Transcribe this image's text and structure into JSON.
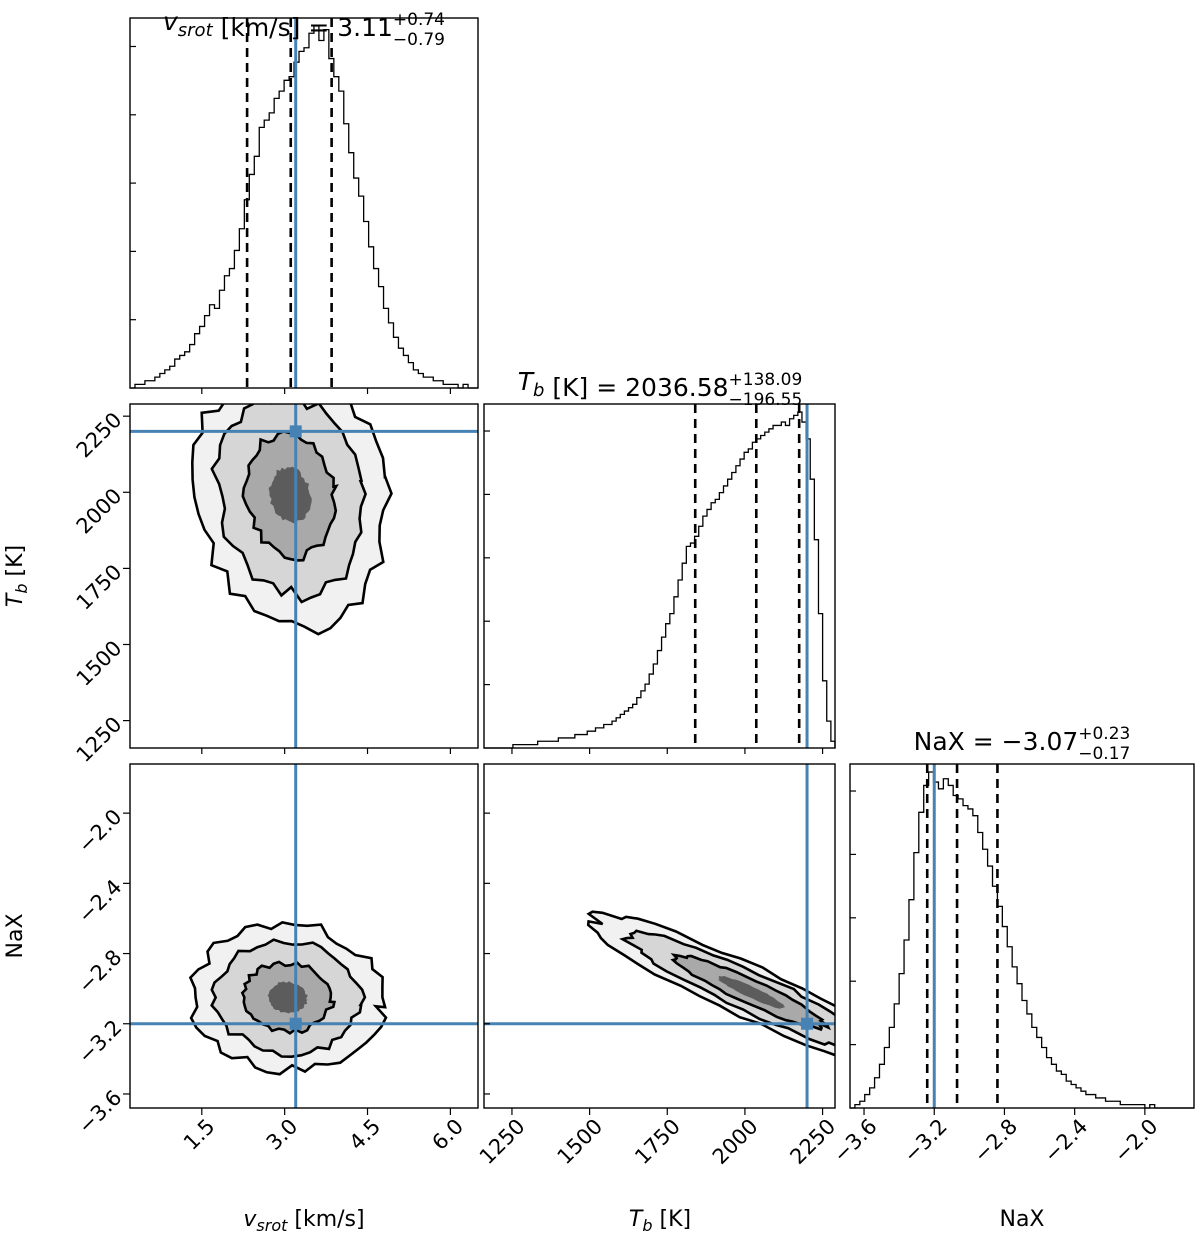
{
  "chart_data": {
    "type": "corner",
    "truth_color": "#4682b4",
    "parameters": [
      {
        "key": "vsrot",
        "label_main": "v",
        "label_sub": "srot",
        "label_unit": " [km/s]",
        "title_prefix": " [km/s] = ",
        "median": "3.11",
        "err_plus": "+0.74",
        "err_minus": "−0.79",
        "range": [
          0.2,
          6.5
        ],
        "ticks": [
          1.5,
          3.0,
          4.5,
          6.0
        ],
        "tick_labels": [
          "1.5",
          "3.0",
          "4.5",
          "6.0"
        ],
        "quantiles": [
          2.32,
          3.11,
          3.85
        ],
        "truth": 3.2,
        "hist": [
          0,
          1,
          1,
          2,
          2,
          3,
          4,
          5,
          6,
          8,
          9,
          10,
          12,
          15,
          17,
          20,
          23,
          22,
          27,
          31,
          33,
          38,
          44,
          52,
          59,
          64,
          72,
          74,
          76,
          80,
          82,
          85,
          86,
          90,
          93,
          94,
          98,
          100,
          96,
          99,
          91,
          86,
          82,
          73,
          65,
          58,
          53,
          46,
          39,
          33,
          28,
          22,
          18,
          14,
          11,
          9,
          7,
          5,
          4,
          3,
          3,
          2,
          2,
          1,
          1,
          1,
          0,
          1,
          0,
          0
        ]
      },
      {
        "key": "tb",
        "label_main": "T",
        "label_sub": "b",
        "label_unit": " [K]",
        "title_prefix": " [K] = ",
        "median": "2036.58",
        "err_plus": "+138.09",
        "err_minus": "−196.55",
        "range": [
          1160,
          2290
        ],
        "ticks": [
          1250,
          1500,
          1750,
          2000,
          2250
        ],
        "tick_labels": [
          "1250",
          "1500",
          "1750",
          "2000",
          "2250"
        ],
        "yticks": [
          1250,
          1500,
          1750,
          2000,
          2250
        ],
        "quantiles": [
          1840,
          2036.58,
          2174.67
        ],
        "truth": 2200,
        "hist": [
          0,
          0,
          0,
          0,
          0,
          0,
          0,
          1,
          1,
          1,
          1,
          1,
          1,
          2,
          2,
          2,
          2,
          2,
          3,
          3,
          3,
          3,
          4,
          4,
          4,
          5,
          5,
          6,
          6,
          7,
          7,
          8,
          9,
          10,
          11,
          12,
          13,
          15,
          17,
          19,
          22,
          25,
          29,
          33,
          37,
          40,
          45,
          50,
          55,
          60,
          61,
          63,
          66,
          69,
          71,
          73,
          74,
          76,
          78,
          80,
          82,
          84,
          86,
          88,
          89,
          91,
          92,
          93,
          94,
          95,
          96,
          96,
          97,
          96,
          98,
          99,
          100,
          97,
          92,
          80,
          62,
          40,
          20,
          8,
          2
        ]
      },
      {
        "key": "nax",
        "label_main": "NaX",
        "label_sub": "",
        "label_unit": "",
        "title_prefix": " = ",
        "median": "−3.07",
        "err_plus": "+0.23",
        "err_minus": "−0.17",
        "range": [
          -3.68,
          -1.72
        ],
        "ticks": [
          -3.6,
          -3.2,
          -2.8,
          -2.4,
          -2.0
        ],
        "tick_labels": [
          "−3.6",
          "−3.2",
          "−2.8",
          "−2.4",
          "−2.0"
        ],
        "quantiles": [
          -3.24,
          -3.07,
          -2.84
        ],
        "truth": -3.2,
        "hist": [
          0,
          1,
          2,
          4,
          6,
          9,
          13,
          18,
          24,
          31,
          40,
          50,
          62,
          76,
          88,
          96,
          100,
          97,
          95,
          98,
          96,
          93,
          92,
          90,
          89,
          87,
          82,
          77,
          72,
          66,
          60,
          54,
          48,
          42,
          37,
          32,
          28,
          24,
          21,
          18,
          15,
          13,
          11,
          10,
          8,
          7,
          6,
          5,
          4,
          4,
          3,
          3,
          2,
          2,
          2,
          1,
          1,
          1,
          1,
          1,
          0,
          1,
          0,
          0,
          0,
          0,
          0,
          0,
          0,
          0
        ]
      }
    ],
    "density_levels": 3
  }
}
